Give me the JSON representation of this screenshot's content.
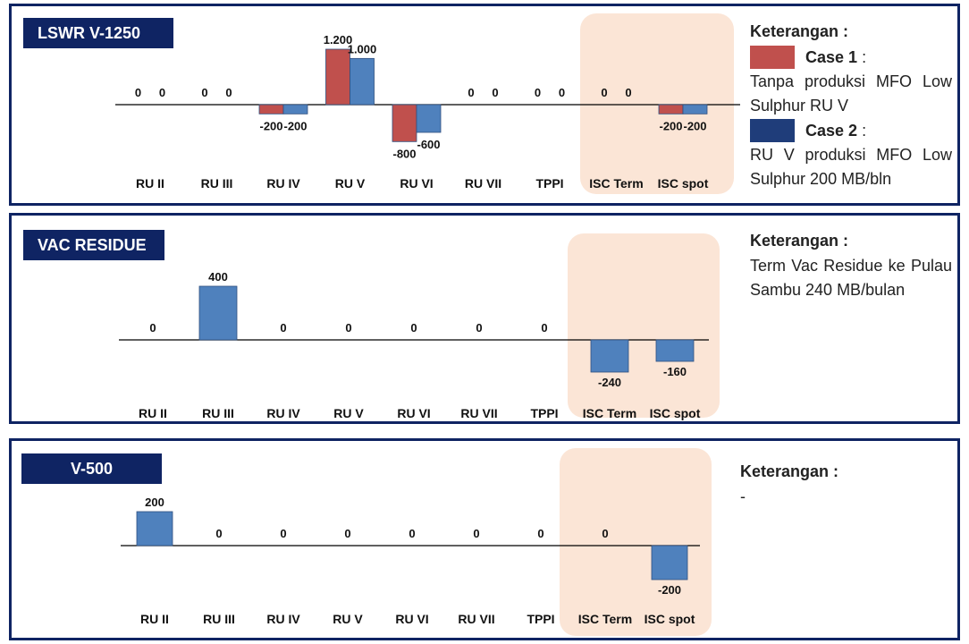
{
  "colors": {
    "case1": "#c0504d",
    "case2": "#4f81bd",
    "highlight": "#fbe5d6",
    "frame": "#0f2463"
  },
  "panels": [
    {
      "title": "LSWR V-1250",
      "legend": {
        "heading": "Keterangan :",
        "case1_label": "Case 1",
        "case1_suffix": ":",
        "case1_desc": "Tanpa produksi MFO Low Sulphur RU V",
        "case2_label": "Case 2",
        "case2_suffix": ":",
        "case2_desc": "RU V produksi MFO Low Sulphur 200 MB/bln"
      }
    },
    {
      "title": "VAC RESIDUE",
      "legend": {
        "heading": "Keterangan :",
        "desc": "Term Vac Residue ke Pulau Sambu 240 MB/bulan"
      }
    },
    {
      "title": "V-500",
      "legend": {
        "heading": "Keterangan :",
        "desc": "-"
      }
    }
  ],
  "chart_data": [
    {
      "type": "bar",
      "title": "LSWR V-1250",
      "categories": [
        "RU II",
        "RU III",
        "RU IV",
        "RU V",
        "RU VI",
        "RU VII",
        "TPPI",
        "ISC Term",
        "ISC spot"
      ],
      "series": [
        {
          "name": "Case 1",
          "values": [
            0,
            0,
            -200,
            1200,
            -800,
            0,
            0,
            0,
            -200
          ],
          "labels": [
            "0",
            "0",
            "-200",
            "1.200",
            "-800",
            "0",
            "0",
            "0",
            "-200"
          ]
        },
        {
          "name": "Case 2",
          "values": [
            0,
            0,
            -200,
            1000,
            -600,
            0,
            0,
            0,
            -200
          ],
          "labels": [
            "0",
            "0",
            "-200",
            "1.000",
            "-600",
            "0",
            "0",
            "0",
            "-200"
          ]
        }
      ],
      "highlighted_categories": [
        "ISC Term",
        "ISC spot"
      ],
      "grid": false
    },
    {
      "type": "bar",
      "title": "VAC RESIDUE",
      "categories": [
        "RU II",
        "RU III",
        "RU IV",
        "RU V",
        "RU VI",
        "RU VII",
        "TPPI",
        "ISC Term",
        "ISC spot"
      ],
      "series": [
        {
          "values": [
            0,
            400,
            0,
            0,
            0,
            0,
            0,
            -240,
            -160
          ],
          "labels": [
            "0",
            "400",
            "0",
            "0",
            "0",
            "0",
            "0",
            "-240",
            "-160"
          ]
        }
      ],
      "highlighted_categories": [
        "ISC Term",
        "ISC spot"
      ],
      "grid": false
    },
    {
      "type": "bar",
      "title": "V-500",
      "categories": [
        "RU II",
        "RU III",
        "RU IV",
        "RU V",
        "RU VI",
        "RU VII",
        "TPPI",
        "ISC Term",
        "ISC spot"
      ],
      "series": [
        {
          "values": [
            200,
            0,
            0,
            0,
            0,
            0,
            0,
            0,
            -200
          ],
          "labels": [
            "200",
            "0",
            "0",
            "0",
            "0",
            "0",
            "0",
            "0",
            "-200"
          ]
        }
      ],
      "highlighted_categories": [
        "ISC Term",
        "ISC spot"
      ],
      "grid": false
    }
  ]
}
